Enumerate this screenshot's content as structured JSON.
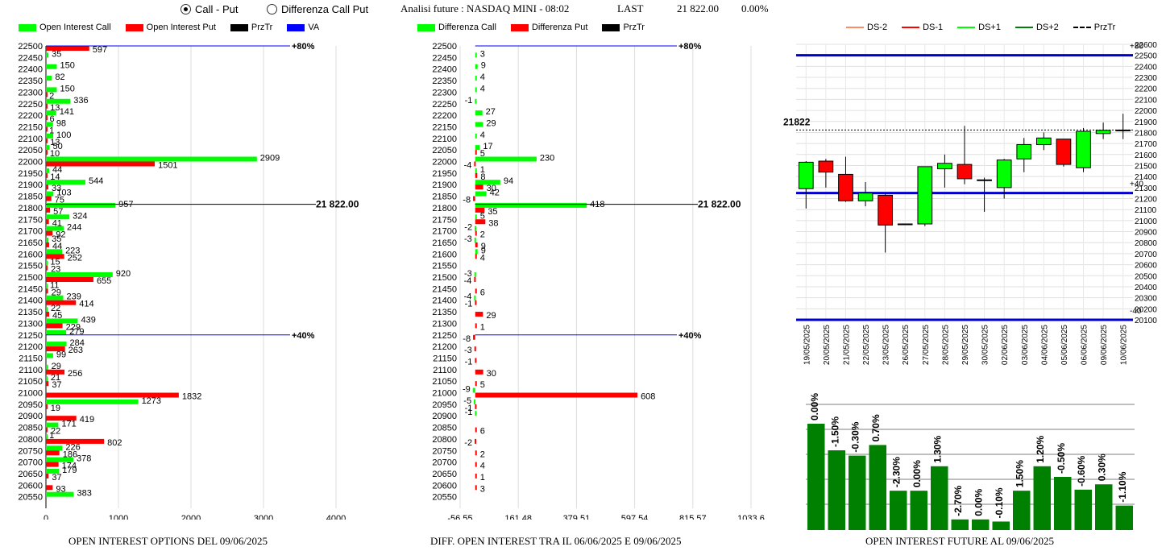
{
  "header": {
    "radio_call_put": "Call - Put",
    "radio_diff": "Differenza Call Put",
    "analysis": "Analisi future : NASDAQ MINI - 08:02",
    "last_label": "LAST",
    "last_value": "21 822.00",
    "last_change": "0.00%"
  },
  "colors": {
    "call": "#00ff00",
    "put": "#ff0000",
    "prz": "#000000",
    "va": "#0000ff",
    "dark_green": "#008000"
  },
  "left_panel": {
    "legend": [
      "Open Interest Call",
      "Open Interest Put",
      "PrzTr",
      "VA"
    ],
    "footer": "OPEN INTEREST OPTIONS DEL 09/06/2025",
    "prz_label": "21 822.00",
    "line80": "+80%",
    "line40": "+40%"
  },
  "mid_panel": {
    "legend": [
      "Differenza Call",
      "Differenza Put",
      "PrzTr"
    ],
    "footer": "DIFF. OPEN INTEREST TRA IL 06/06/2025 E 09/06/2025",
    "prz_label": "21 822.00",
    "line80": "+80%",
    "line40": "+40%"
  },
  "right_panel": {
    "legend": [
      "DS-2",
      "DS-1",
      "DS+1",
      "DS+2",
      "PrzTr"
    ],
    "footer": "OPEN INTEREST FUTURE AL 09/06/2025",
    "last_label": "21822",
    "top_tag": "+80",
    "mid_tag": "+40",
    "bot_tag": "-40"
  },
  "chart_data": [
    {
      "type": "bar",
      "title": "OPEN INTEREST OPTIONS DEL 09/06/2025",
      "orientation": "horizontal",
      "strikes": [
        22500,
        22450,
        22400,
        22350,
        22300,
        22250,
        22200,
        22150,
        22100,
        22050,
        22000,
        21950,
        21900,
        21850,
        21800,
        21750,
        21700,
        21650,
        21600,
        21550,
        21500,
        21450,
        21400,
        21350,
        21300,
        21250,
        21200,
        21150,
        21100,
        21050,
        21000,
        20950,
        20900,
        20850,
        20800,
        20750,
        20700,
        20650,
        20600,
        20550
      ],
      "series": [
        {
          "name": "Open Interest Call",
          "values": [
            null,
            35,
            150,
            82,
            150,
            336,
            141,
            98,
            100,
            50,
            2909,
            44,
            544,
            103,
            957,
            324,
            244,
            35,
            223,
            15,
            920,
            11,
            239,
            22,
            439,
            279,
            284,
            99,
            29,
            21,
            null,
            1273,
            null,
            171,
            1,
            226,
            378,
            179,
            null,
            383
          ]
        },
        {
          "name": "Open Interest Put",
          "values": [
            597,
            null,
            null,
            null,
            2,
            13,
            6,
            1,
            13,
            10,
            1501,
            14,
            33,
            75,
            57,
            41,
            92,
            44,
            252,
            23,
            655,
            29,
            414,
            45,
            229,
            null,
            263,
            null,
            256,
            37,
            1832,
            19,
            419,
            22,
            802,
            186,
            174,
            37,
            93,
            null
          ]
        }
      ],
      "xticks": [
        0,
        1000,
        2000,
        3000,
        4000
      ],
      "xlim": [
        0,
        4000
      ],
      "prz_tr": 21822,
      "va_lines": [
        22500,
        21250
      ]
    },
    {
      "type": "bar",
      "title": "DIFF. OPEN INTEREST TRA IL 06/06/2025 E 09/06/2025",
      "orientation": "horizontal",
      "strikes": [
        22500,
        22450,
        22400,
        22350,
        22300,
        22250,
        22200,
        22150,
        22100,
        22050,
        22000,
        21950,
        21900,
        21850,
        21800,
        21750,
        21700,
        21650,
        21600,
        21550,
        21500,
        21450,
        21400,
        21350,
        21300,
        21250,
        21200,
        21150,
        21100,
        21050,
        21000,
        20950,
        20900,
        20850,
        20800,
        20750,
        20700,
        20650,
        20600,
        20550
      ],
      "labels": [
        "",
        "3",
        "9",
        "4",
        "4",
        "-1",
        "27",
        "29",
        "4",
        "17|5",
        "230|-4",
        "1|8",
        "94|30",
        "42|-8",
        "418|35",
        "5|38",
        "-2|2",
        "-3|9",
        "9|4",
        "",
        "-3|-4",
        "6",
        "-4|-1",
        "29",
        "1",
        "-8",
        "-3",
        "-1",
        "30",
        "5",
        "-9|608",
        "-5|-1",
        "-1",
        "6",
        "-2",
        "2",
        "4",
        "1",
        "3",
        ""
      ],
      "diff_call": {
        "22450": 3,
        "22400": 9,
        "22350": 4,
        "22300": 4,
        "22250": -1,
        "22200": 27,
        "22150": 29,
        "22100": 4,
        "22050": 17,
        "22000": 230,
        "21950": 1,
        "21900": 94,
        "21850": 42,
        "21800": 418,
        "21750": 5,
        "21700": -2,
        "21650": -3,
        "21600": 9,
        "21500": -3,
        "21400": -4,
        "21000": -9,
        "20950": -5,
        "20900": -1
      },
      "diff_put": {
        "22050": 5,
        "22000": -4,
        "21950": 8,
        "21900": 30,
        "21850": -8,
        "21800": 35,
        "21750": 38,
        "21700": 2,
        "21650": 9,
        "21600": 4,
        "21500": -4,
        "21450": 6,
        "21400": -1,
        "21350": 29,
        "21300": 1,
        "21250": -8,
        "21200": -3,
        "21150": -1,
        "21100": 30,
        "21050": 5,
        "21000": 608,
        "20950": -1,
        "20850": 6,
        "20800": -2,
        "20750": 2,
        "20700": 4,
        "20650": 1,
        "20600": 3
      },
      "xticks": [
        "-56.55",
        "161.48",
        "379.51",
        "597.54",
        "815.57",
        "1033.6"
      ],
      "xlim": [
        -56.55,
        1033.6
      ]
    },
    {
      "type": "candlestick",
      "title": "OPEN INTEREST FUTURE AL 09/06/2025",
      "dates": [
        "19/05/2025",
        "20/05/2025",
        "21/05/2025",
        "22/05/2025",
        "23/05/2025",
        "26/05/2025",
        "27/05/2025",
        "28/05/2025",
        "29/05/2025",
        "30/05/2025",
        "02/06/2025",
        "03/06/2025",
        "04/06/2025",
        "05/06/2025",
        "06/06/2025",
        "09/06/2025",
        "10/06/2025"
      ],
      "ohlc": [
        [
          21290,
          21540,
          21110,
          21530
        ],
        [
          21540,
          21560,
          21300,
          21440
        ],
        [
          21420,
          21580,
          21170,
          21180
        ],
        [
          21180,
          21350,
          21130,
          21250
        ],
        [
          21230,
          21240,
          20710,
          20960
        ],
        [
          20970,
          20970,
          20970,
          20970
        ],
        [
          20970,
          21490,
          20950,
          21490
        ],
        [
          21470,
          21600,
          21300,
          21520
        ],
        [
          21510,
          21860,
          21330,
          21380
        ],
        [
          21370,
          21390,
          21080,
          21370
        ],
        [
          21300,
          21560,
          21200,
          21550
        ],
        [
          21560,
          21750,
          21440,
          21690
        ],
        [
          21690,
          21800,
          21640,
          21750
        ],
        [
          21740,
          21740,
          21490,
          21510
        ],
        [
          21480,
          21840,
          21440,
          21810
        ],
        [
          21790,
          21890,
          21740,
          21820
        ],
        [
          21820,
          21970,
          21740,
          21822
        ]
      ],
      "yticks": [
        22600,
        22500,
        22400,
        22300,
        22200,
        22100,
        22000,
        21900,
        21800,
        21700,
        21600,
        21500,
        21400,
        21300,
        21200,
        21100,
        21000,
        20900,
        20800,
        20700,
        20600,
        20500,
        20400,
        20300,
        20200,
        20100
      ],
      "ylim": [
        20100,
        22600
      ],
      "blue_lines": [
        22500,
        21250,
        20100
      ],
      "last": 21822
    },
    {
      "type": "bar",
      "title": "OPEN INTEREST FUTURE AL 09/06/2025",
      "labels": [
        "0.00%",
        "-1.50%",
        "-0.30%",
        "0.70%",
        "-2.30%",
        "0.00%",
        "1.30%",
        "-2.70%",
        "0.00%",
        "-0.10%",
        "1.50%",
        "1.20%",
        "-0.50%",
        "-0.60%",
        "0.30%",
        "-1.10%"
      ],
      "values": [
        100,
        75,
        70,
        80,
        37,
        37,
        60,
        10,
        10,
        8,
        37,
        60,
        50,
        38,
        43,
        23
      ]
    }
  ]
}
